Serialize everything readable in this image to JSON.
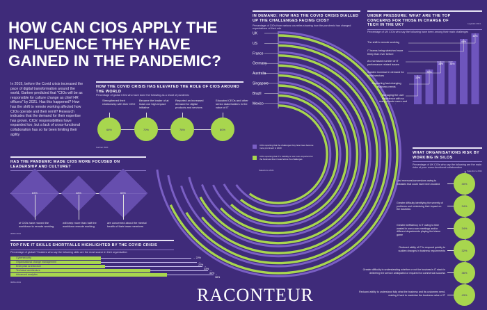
{
  "title": "HOW CAN CIOS APPLY THE INFLUENCE THEY HAVE GAINED IN THE PANDEMIC?",
  "intro": "In 2019, before the Covid crisis increased the pace of digital transformation around the world, Gartner predicted that \"CIOs will be as responsible for culture change as chief HR officers\" by 2021. Has this happened? How has the shift to remote working affected how CIOs operate and their remit? Research indicates that the demand for their expertise has grown. CIOs' responsibilities have expanded too, but a lack of cross-functional collaboration has so far been limiting their agility",
  "elevated": {
    "title": "HOW THE COVID CRISIS HAS ELEVATED THE ROLE OF CIOS AROUND THE WORLD",
    "subtitle": "Percentage of global CIOs who have done the following as a result of pandemic",
    "source": "Gartner 2021",
    "items": [
      {
        "label": "Strengthened their relationship with their CEO",
        "value": "66%"
      },
      {
        "label": "Became the leader of at least one high-impact initiative",
        "value": "70%"
      },
      {
        "label": "Reported an increased demand for digital products and services",
        "value": "78%"
      },
      {
        "label": "Educated CEOs and other senior stakeholders in the value of IT",
        "value": "80%"
      }
    ]
  },
  "leadership": {
    "title": "HAS THE PANDEMIC MADE CIOS MORE FOCUSED ON LEADERSHIP AND CULTURE?",
    "source": "IDWA 2021",
    "items": [
      {
        "label": "of CIOs have moved the workforce to remote working",
        "value": "83%"
      },
      {
        "label": "will keep more than half the workforce remote working",
        "value": "48%"
      },
      {
        "label": "are concerned about the mental health of their team members",
        "value": "63%"
      }
    ]
  },
  "skills": {
    "title": "TOP FIVE IT SKILLS SHORTFALLS HIGHLIGHTED BY THE COVID CRISIS",
    "subtitle": "Percentage of global IT leaders who say the following skills are the most scarce in their organisation",
    "source": "IDWA 2021",
    "items": [
      {
        "label": "Cybersecurity",
        "value": 22
      },
      {
        "label": "Organisational change management",
        "value": 22
      },
      {
        "label": "Enterprise architecture",
        "value": 23
      },
      {
        "label": "Technical architecture",
        "value": 34
      },
      {
        "label": "Advanced analytics",
        "value": 38
      }
    ]
  },
  "demand": {
    "title": "IN DEMAND: HOW HAS THE COVID CRISIS DIALLED UP THE CHALLENGES FACING CIOS?",
    "subtitle": "Percentage of CIOs from various countries showing how the pandemic has changed expectations of their role",
    "source": "Salesforce 2021",
    "legend": [
      {
        "label": "CIOs reporting that the challenges they face have become more prominent in 2020",
        "color": "#7a5fc4"
      },
      {
        "label": "CIOs reporting that IT's visibility is now more important for the business than it was before the challenges",
        "color": "#a8d64e"
      }
    ],
    "countries": [
      {
        "name": "UK",
        "a": 73,
        "b": 68
      },
      {
        "name": "US",
        "a": 72,
        "b": 66
      },
      {
        "name": "France",
        "a": 70,
        "b": 64
      },
      {
        "name": "Germany",
        "a": 71,
        "b": 67
      },
      {
        "name": "Australia",
        "a": 69,
        "b": 63
      },
      {
        "name": "Singapore",
        "a": 68,
        "b": 62
      },
      {
        "name": "Brazil",
        "a": 67,
        "b": 61
      },
      {
        "name": "Mexico",
        "a": 65,
        "b": 60
      }
    ]
  },
  "pressure": {
    "title": "UNDER PRESSURE: WHAT ARE THE TOP CONCERNS FOR THOSE IN CHARGE OF TECH IN THE UK?",
    "subtitle": "Percentage of UK CIOs who say the following have been among their main challenges",
    "source": "Logicalis 2021",
    "items": [
      {
        "label": "Managing the user experience with so many remote users and such high demand",
        "value": 33
      },
      {
        "label": "Supporting fast-changing business needs",
        "value": 35
      },
      {
        "label": "Sudden increase in demand for cloud services",
        "value": 38
      },
      {
        "label": "An increased number of IT performance related issues",
        "value": 38
      },
      {
        "label": "IT teams being stretched more thinly than ever before",
        "value": 46
      },
      {
        "label": "The shift to remote working",
        "value": 48
      }
    ]
  },
  "silos": {
    "title": "WHAT ORGANISATIONS RISK BY WORKING IN SILOS",
    "subtitle": "Percentage of UK CIOs who say the following are the main risks of poor cross-functional collaboration",
    "source": "Salesforce 2021",
    "items": [
      {
        "label": "Lost revenues/conversions owing to mistakes that could have been avoided",
        "value": "30%"
      },
      {
        "label": "Greater difficulty identifying the severity of problems and minimising their impact on the business",
        "value": "34%"
      },
      {
        "label": "Greater inefficiency in IT owing to time wasted in over-room meetings and/or different departments playing the blame game",
        "value": "34%"
      },
      {
        "label": "Reduced ability of IT to respond quickly to sudden changes in business requirements",
        "value": "32%"
      },
      {
        "label": "Greater difficulty in understanding whether or not the business's IT stack is delivering the service anticipated or required for commercial success",
        "value": "36%"
      },
      {
        "label": "Reduced ability to understand fully what the business and its customers need, making it hard to maximise the business value of IT",
        "value": "43%"
      }
    ]
  },
  "brand": "RACONTEUR",
  "colors": {
    "background": "#3f2b7a",
    "green": "#a8d64e",
    "purple": "#7a5fc4"
  }
}
